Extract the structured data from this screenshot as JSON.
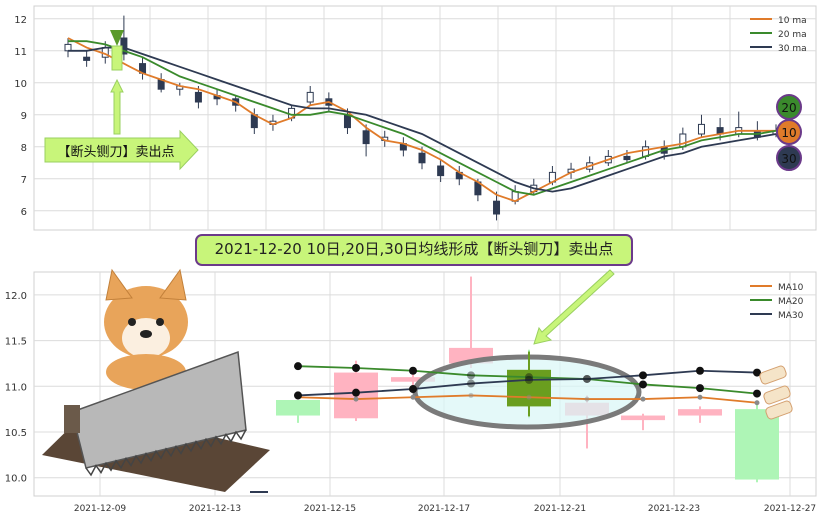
{
  "colors": {
    "ma10": "#e07b2a",
    "ma20": "#3a8a2c",
    "ma30": "#2e3a52",
    "up": "#ffb3c1",
    "down": "#aef5b6",
    "highlight_green": "#6a9e1f",
    "callout_fill": "#c8f57a",
    "grid": "#dcdcdc",
    "badge20": "#3a8a2c",
    "badge10": "#e07b2a",
    "badge30": "#2e3a52"
  },
  "annotations": {
    "callout_left": "【断头铡刀】卖出点",
    "banner": "2021-12-20 10日,20日,30日均线形成【断头铡刀】卖出点"
  },
  "badges": [
    "20",
    "10",
    "30"
  ],
  "chart_data": [
    {
      "type": "line",
      "panel": "overview",
      "y_ticks": [
        12,
        11,
        10,
        9,
        8,
        7,
        6
      ],
      "ylim": [
        5.4,
        12.4
      ],
      "grid": true,
      "legend": "top-right",
      "series": [
        {
          "name": "10 ma",
          "values": [
            11.4,
            11.1,
            10.9,
            10.6,
            10.3,
            10.1,
            9.9,
            9.8,
            9.6,
            9.4,
            9.0,
            8.7,
            8.9,
            9.3,
            9.4,
            9.1,
            8.6,
            8.2,
            8.1,
            7.9,
            7.6,
            7.2,
            6.9,
            6.5,
            6.3,
            6.6,
            6.9,
            7.2,
            7.4,
            7.6,
            7.8,
            7.9,
            8.0,
            8.1,
            8.3,
            8.4,
            8.5,
            8.5,
            8.5
          ]
        },
        {
          "name": "20 ma",
          "values": [
            11.3,
            11.3,
            11.2,
            11.0,
            10.8,
            10.5,
            10.2,
            10.0,
            9.8,
            9.6,
            9.4,
            9.2,
            9.0,
            9.0,
            9.1,
            9.0,
            8.8,
            8.6,
            8.4,
            8.1,
            7.8,
            7.5,
            7.2,
            6.9,
            6.6,
            6.5,
            6.7,
            6.9,
            7.1,
            7.3,
            7.5,
            7.7,
            7.9,
            8.0,
            8.2,
            8.3,
            8.4,
            8.4,
            8.5
          ]
        },
        {
          "name": "30 ma",
          "values": [
            11.0,
            11.0,
            11.1,
            11.1,
            10.9,
            10.7,
            10.5,
            10.3,
            10.1,
            9.9,
            9.7,
            9.5,
            9.3,
            9.2,
            9.2,
            9.1,
            9.0,
            8.8,
            8.6,
            8.4,
            8.1,
            7.8,
            7.5,
            7.2,
            6.9,
            6.7,
            6.6,
            6.7,
            6.9,
            7.1,
            7.3,
            7.5,
            7.7,
            7.8,
            8.0,
            8.1,
            8.2,
            8.3,
            8.4
          ]
        }
      ],
      "candles": [
        {
          "o": 11.0,
          "c": 11.2,
          "h": 11.4,
          "l": 10.8
        },
        {
          "o": 10.8,
          "c": 10.7,
          "h": 11.0,
          "l": 10.5
        },
        {
          "o": 10.8,
          "c": 11.1,
          "h": 11.3,
          "l": 10.6
        },
        {
          "o": 11.4,
          "c": 10.9,
          "h": 12.1,
          "l": 10.7
        },
        {
          "o": 10.6,
          "c": 10.3,
          "h": 10.8,
          "l": 10.1
        },
        {
          "o": 10.1,
          "c": 9.8,
          "h": 10.3,
          "l": 9.7
        },
        {
          "o": 9.8,
          "c": 9.9,
          "h": 10.0,
          "l": 9.6
        },
        {
          "o": 9.7,
          "c": 9.4,
          "h": 9.9,
          "l": 9.2
        },
        {
          "o": 9.6,
          "c": 9.5,
          "h": 9.8,
          "l": 9.3
        },
        {
          "o": 9.5,
          "c": 9.3,
          "h": 9.6,
          "l": 9.1
        },
        {
          "o": 9.0,
          "c": 8.6,
          "h": 9.2,
          "l": 8.4
        },
        {
          "o": 8.7,
          "c": 8.8,
          "h": 9.0,
          "l": 8.5
        },
        {
          "o": 8.9,
          "c": 9.2,
          "h": 9.3,
          "l": 8.8
        },
        {
          "o": 9.4,
          "c": 9.7,
          "h": 9.9,
          "l": 9.3
        },
        {
          "o": 9.5,
          "c": 9.3,
          "h": 9.7,
          "l": 9.1
        },
        {
          "o": 9.0,
          "c": 8.6,
          "h": 9.2,
          "l": 8.4
        },
        {
          "o": 8.5,
          "c": 8.1,
          "h": 8.7,
          "l": 7.7
        },
        {
          "o": 8.2,
          "c": 8.3,
          "h": 8.5,
          "l": 8.0
        },
        {
          "o": 8.1,
          "c": 7.9,
          "h": 8.3,
          "l": 7.7
        },
        {
          "o": 7.8,
          "c": 7.5,
          "h": 8.0,
          "l": 7.3
        },
        {
          "o": 7.4,
          "c": 7.1,
          "h": 7.6,
          "l": 6.9
        },
        {
          "o": 7.2,
          "c": 7.0,
          "h": 7.4,
          "l": 6.8
        },
        {
          "o": 6.9,
          "c": 6.5,
          "h": 7.0,
          "l": 6.3
        },
        {
          "o": 6.3,
          "c": 5.9,
          "h": 6.6,
          "l": 5.7
        },
        {
          "o": 6.3,
          "c": 6.6,
          "h": 6.8,
          "l": 6.2
        },
        {
          "o": 6.6,
          "c": 6.8,
          "h": 7.0,
          "l": 6.5
        },
        {
          "o": 6.9,
          "c": 7.2,
          "h": 7.4,
          "l": 6.8
        },
        {
          "o": 7.2,
          "c": 7.3,
          "h": 7.5,
          "l": 7.0
        },
        {
          "o": 7.3,
          "c": 7.5,
          "h": 7.7,
          "l": 7.2
        },
        {
          "o": 7.5,
          "c": 7.7,
          "h": 7.9,
          "l": 7.4
        },
        {
          "o": 7.7,
          "c": 7.6,
          "h": 7.9,
          "l": 7.5
        },
        {
          "o": 7.7,
          "c": 8.0,
          "h": 8.2,
          "l": 7.6
        },
        {
          "o": 8.0,
          "c": 7.8,
          "h": 8.2,
          "l": 7.6
        },
        {
          "o": 8.0,
          "c": 8.4,
          "h": 8.6,
          "l": 7.9
        },
        {
          "o": 8.4,
          "c": 8.7,
          "h": 9.0,
          "l": 8.3
        },
        {
          "o": 8.6,
          "c": 8.4,
          "h": 8.9,
          "l": 8.2
        },
        {
          "o": 8.4,
          "c": 8.6,
          "h": 9.1,
          "l": 8.3
        },
        {
          "o": 8.5,
          "c": 8.3,
          "h": 8.8,
          "l": 8.2
        },
        {
          "o": 8.4,
          "c": 8.5,
          "h": 8.7,
          "l": 8.3
        }
      ]
    },
    {
      "type": "line",
      "panel": "zoom",
      "y_ticks": [
        "12.0",
        "11.5",
        "11.0",
        "10.5",
        "10.0"
      ],
      "ylim": [
        9.8,
        12.25
      ],
      "x_ticks": [
        "2021-12-09",
        "2021-12-13",
        "2021-12-15",
        "2021-12-17",
        "2021-12-21",
        "2021-12-23",
        "2021-12-27"
      ],
      "grid": true,
      "legend": "top-right",
      "series": [
        {
          "name": "MA10",
          "values": [
            10.88,
            10.86,
            10.88,
            10.9,
            10.88,
            10.86,
            10.86,
            10.88,
            10.82
          ]
        },
        {
          "name": "MA20",
          "values": [
            11.22,
            11.2,
            11.17,
            11.12,
            11.1,
            11.08,
            11.02,
            10.98,
            10.92
          ]
        },
        {
          "name": "MA30",
          "values": [
            10.9,
            10.93,
            10.97,
            11.03,
            11.07,
            11.08,
            11.12,
            11.17,
            11.15
          ]
        }
      ],
      "candles": [
        {
          "o": 10.85,
          "c": 10.68,
          "h": 10.85,
          "l": 10.6,
          "dir": "down"
        },
        {
          "o": 10.65,
          "c": 11.15,
          "h": 11.28,
          "l": 10.62,
          "dir": "up"
        },
        {
          "o": 11.05,
          "c": 11.1,
          "h": 11.2,
          "l": 10.95,
          "dir": "up"
        },
        {
          "o": 11.25,
          "c": 11.42,
          "h": 12.2,
          "l": 11.2,
          "dir": "up"
        },
        {
          "o": 11.18,
          "c": 10.78,
          "h": 11.4,
          "l": 10.65,
          "dir": "down"
        },
        {
          "o": 10.82,
          "c": 10.68,
          "h": 10.9,
          "l": 10.32,
          "dir": "up"
        },
        {
          "o": 10.68,
          "c": 10.63,
          "h": 10.7,
          "l": 10.52,
          "dir": "up"
        },
        {
          "o": 10.68,
          "c": 10.75,
          "h": 10.78,
          "l": 10.6,
          "dir": "up"
        },
        {
          "o": 10.75,
          "c": 9.98,
          "h": 10.8,
          "l": 9.95,
          "dir": "down"
        }
      ]
    }
  ]
}
